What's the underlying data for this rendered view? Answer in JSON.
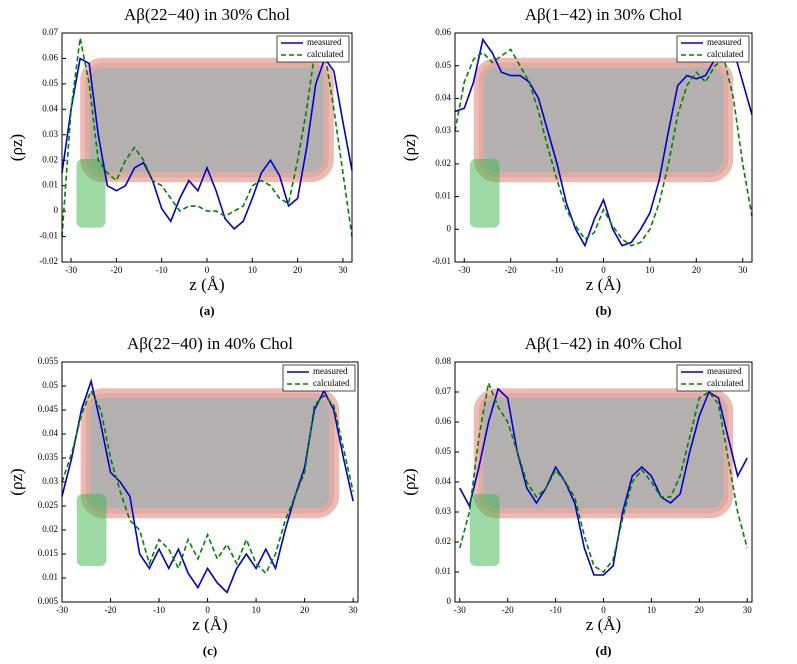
{
  "chart_data": [
    {
      "type": "line",
      "title": "Aβ(22−40) in 30% Chol",
      "xlabel": "z (Å)",
      "ylabel": "(ρz)",
      "label": "(a)",
      "x": [
        -32,
        -30,
        -28,
        -26,
        -24,
        -22,
        -20,
        -18,
        -16,
        -14,
        -12,
        -10,
        -8,
        -6,
        -4,
        -2,
        0,
        2,
        4,
        6,
        8,
        10,
        12,
        14,
        16,
        18,
        20,
        22,
        24,
        26,
        28,
        30,
        32
      ],
      "series": [
        {
          "name": "measured",
          "color": "#0000cc",
          "linestyle": "solid",
          "values": [
            0.015,
            0.04,
            0.06,
            0.058,
            0.03,
            0.01,
            0.008,
            0.01,
            0.017,
            0.019,
            0.012,
            0.001,
            -0.004,
            0.005,
            0.012,
            0.008,
            0.017,
            0.008,
            -0.003,
            -0.007,
            -0.004,
            0.005,
            0.015,
            0.02,
            0.014,
            0.002,
            0.005,
            0.025,
            0.05,
            0.06,
            0.055,
            0.035,
            0.016
          ]
        },
        {
          "name": "calculated",
          "color": "#008000",
          "linestyle": "dashed",
          "values": [
            -0.01,
            0.04,
            0.068,
            0.05,
            0.02,
            0.015,
            0.012,
            0.02,
            0.025,
            0.02,
            0.012,
            0.01,
            0.005,
            0.0,
            0.002,
            0.002,
            0.0,
            0.0,
            -0.002,
            0.0,
            0.002,
            0.01,
            0.012,
            0.01,
            0.005,
            0.003,
            0.02,
            0.04,
            0.065,
            0.062,
            0.04,
            0.015,
            -0.01
          ]
        }
      ],
      "xlim": [
        -32,
        32
      ],
      "xticks": [
        -30,
        -20,
        -10,
        0,
        10,
        20,
        30
      ],
      "ylim": [
        -0.02,
        0.07
      ],
      "yticks": [
        -0.02,
        -0.01,
        0,
        0.01,
        0.02,
        0.03,
        0.04,
        0.05,
        0.06,
        0.07
      ],
      "legend": "upper right"
    },
    {
      "type": "line",
      "title": "Aβ(1−42) in 30% Chol",
      "xlabel": "z (Å)",
      "ylabel": "(ρz)",
      "label": "(b)",
      "x": [
        -32,
        -30,
        -28,
        -26,
        -24,
        -22,
        -20,
        -18,
        -16,
        -14,
        -12,
        -10,
        -8,
        -6,
        -4,
        -2,
        0,
        2,
        4,
        6,
        8,
        10,
        12,
        14,
        16,
        18,
        20,
        22,
        24,
        26,
        28,
        30,
        32
      ],
      "series": [
        {
          "name": "measured",
          "color": "#0000cc",
          "linestyle": "solid",
          "values": [
            0.036,
            0.037,
            0.045,
            0.058,
            0.054,
            0.048,
            0.047,
            0.047,
            0.045,
            0.04,
            0.03,
            0.02,
            0.008,
            0.0,
            -0.005,
            0.003,
            0.009,
            0.0,
            -0.005,
            -0.004,
            0.0,
            0.005,
            0.015,
            0.03,
            0.044,
            0.047,
            0.046,
            0.047,
            0.052,
            0.058,
            0.055,
            0.045,
            0.035
          ]
        },
        {
          "name": "calculated",
          "color": "#008000",
          "linestyle": "dashed",
          "values": [
            0.03,
            0.045,
            0.052,
            0.054,
            0.051,
            0.053,
            0.055,
            0.05,
            0.045,
            0.036,
            0.025,
            0.015,
            0.006,
            0.001,
            -0.003,
            -0.001,
            0.006,
            0.001,
            -0.003,
            -0.005,
            -0.004,
            0.0,
            0.008,
            0.02,
            0.035,
            0.044,
            0.048,
            0.045,
            0.05,
            0.052,
            0.04,
            0.02,
            0.004
          ]
        }
      ],
      "xlim": [
        -32,
        32
      ],
      "xticks": [
        -30,
        -20,
        -10,
        0,
        10,
        20,
        30
      ],
      "ylim": [
        -0.01,
        0.06
      ],
      "yticks": [
        -0.01,
        0,
        0.01,
        0.02,
        0.03,
        0.04,
        0.05,
        0.06
      ],
      "legend": "upper right"
    },
    {
      "type": "line",
      "title": "Aβ(22−40) in 40% Chol",
      "xlabel": "z (Å)",
      "ylabel": "(ρz)",
      "label": "(c)",
      "x": [
        -30,
        -28,
        -26,
        -24,
        -22,
        -20,
        -18,
        -16,
        -14,
        -12,
        -10,
        -8,
        -6,
        -4,
        -2,
        0,
        2,
        4,
        6,
        8,
        10,
        12,
        14,
        16,
        18,
        20,
        22,
        24,
        26,
        28,
        30
      ],
      "series": [
        {
          "name": "measured",
          "color": "#0000cc",
          "linestyle": "solid",
          "values": [
            0.027,
            0.035,
            0.045,
            0.051,
            0.042,
            0.032,
            0.03,
            0.027,
            0.015,
            0.012,
            0.016,
            0.012,
            0.016,
            0.011,
            0.008,
            0.012,
            0.009,
            0.007,
            0.012,
            0.015,
            0.012,
            0.016,
            0.012,
            0.02,
            0.027,
            0.033,
            0.045,
            0.049,
            0.045,
            0.035,
            0.026
          ]
        },
        {
          "name": "calculated",
          "color": "#008000",
          "linestyle": "dashed",
          "values": [
            0.03,
            0.036,
            0.044,
            0.049,
            0.045,
            0.035,
            0.028,
            0.022,
            0.02,
            0.013,
            0.018,
            0.016,
            0.012,
            0.018,
            0.014,
            0.019,
            0.014,
            0.017,
            0.013,
            0.018,
            0.013,
            0.011,
            0.015,
            0.022,
            0.027,
            0.032,
            0.046,
            0.048,
            0.046,
            0.037,
            0.028
          ]
        }
      ],
      "xlim": [
        -30,
        31
      ],
      "xticks": [
        -30,
        -20,
        -10,
        0,
        10,
        20,
        30
      ],
      "ylim": [
        0.005,
        0.055
      ],
      "yticks": [
        0.005,
        0.01,
        0.015,
        0.02,
        0.025,
        0.03,
        0.035,
        0.04,
        0.045,
        0.05,
        0.055
      ],
      "legend": "upper right"
    },
    {
      "type": "line",
      "title": "Aβ(1−42) in 40% Chol",
      "xlabel": "z (Å)",
      "ylabel": "(ρz)",
      "label": "(d)",
      "x": [
        -30,
        -28,
        -26,
        -24,
        -22,
        -20,
        -18,
        -16,
        -14,
        -12,
        -10,
        -8,
        -6,
        -4,
        -2,
        0,
        2,
        4,
        6,
        8,
        10,
        12,
        14,
        16,
        18,
        20,
        22,
        24,
        26,
        28,
        30
      ],
      "series": [
        {
          "name": "measured",
          "color": "#0000cc",
          "linestyle": "solid",
          "values": [
            0.038,
            0.032,
            0.045,
            0.06,
            0.071,
            0.068,
            0.05,
            0.038,
            0.033,
            0.038,
            0.045,
            0.04,
            0.033,
            0.018,
            0.009,
            0.009,
            0.012,
            0.03,
            0.042,
            0.045,
            0.042,
            0.035,
            0.033,
            0.036,
            0.05,
            0.062,
            0.07,
            0.068,
            0.055,
            0.042,
            0.048
          ]
        },
        {
          "name": "calculated",
          "color": "#008000",
          "linestyle": "dashed",
          "values": [
            0.018,
            0.03,
            0.055,
            0.073,
            0.065,
            0.06,
            0.05,
            0.04,
            0.035,
            0.038,
            0.044,
            0.04,
            0.035,
            0.022,
            0.012,
            0.01,
            0.014,
            0.028,
            0.04,
            0.044,
            0.04,
            0.035,
            0.035,
            0.042,
            0.055,
            0.068,
            0.07,
            0.066,
            0.048,
            0.03,
            0.018
          ]
        }
      ],
      "xlim": [
        -31,
        31
      ],
      "xticks": [
        -30,
        -20,
        -10,
        0,
        10,
        20,
        30
      ],
      "ylim": [
        0,
        0.08
      ],
      "yticks": [
        0,
        0.01,
        0.02,
        0.03,
        0.04,
        0.05,
        0.06,
        0.07,
        0.08
      ],
      "legend": "upper right"
    }
  ]
}
